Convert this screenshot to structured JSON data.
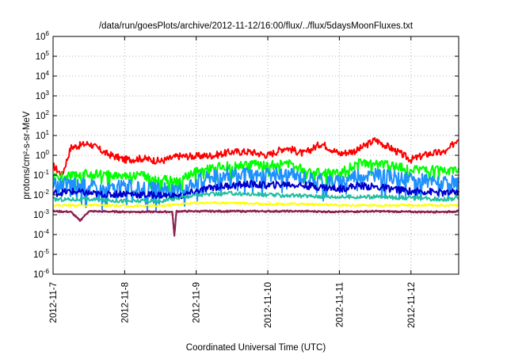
{
  "chart_data": {
    "type": "line",
    "title": "/data/run/goesPlots/archive/2012-11-12/16:00/flux/../flux/5daysMoonFluxes.txt",
    "xlabel": "Coordinated Universal Time (UTC)",
    "ylabel": "protons/cm²-s-sr-MeV",
    "y_scale": "log",
    "ylim": [
      1e-06,
      1000000.0
    ],
    "xlim": [
      "2012-11-07T00:00",
      "2012-11-12T16:00"
    ],
    "grid": true,
    "legend": "none",
    "x_tick_labels": [
      "2012-11-7",
      "2012-11-8",
      "2012-11-9",
      "2012-11-10",
      "2012-11-11",
      "2012-11-12"
    ],
    "y_tick_labels": [
      {
        "base": "10",
        "exp": "-6"
      },
      {
        "base": "10",
        "exp": "-5"
      },
      {
        "base": "10",
        "exp": "-4"
      },
      {
        "base": "10",
        "exp": "-3"
      },
      {
        "base": "10",
        "exp": "-2"
      },
      {
        "base": "10",
        "exp": "-1"
      },
      {
        "base": "10",
        "exp": "0"
      },
      {
        "base": "10",
        "exp": "1"
      },
      {
        "base": "10",
        "exp": "2"
      },
      {
        "base": "10",
        "exp": "3"
      },
      {
        "base": "10",
        "exp": "4"
      },
      {
        "base": "10",
        "exp": "5"
      },
      {
        "base": "10",
        "exp": "6"
      }
    ],
    "series": [
      {
        "color": "#ff0000",
        "x": [
          "2012-11-07T00:00",
          "2012-11-07T03:00",
          "2012-11-07T06:00",
          "2012-11-07T12:00",
          "2012-11-07T18:00",
          "2012-11-08T00:00",
          "2012-11-08T06:00",
          "2012-11-08T12:00",
          "2012-11-08T18:00",
          "2012-11-09T00:00",
          "2012-11-09T06:00",
          "2012-11-09T12:00",
          "2012-11-09T18:00",
          "2012-11-10T00:00",
          "2012-11-10T06:00",
          "2012-11-10T12:00",
          "2012-11-10T18:00",
          "2012-11-11T00:00",
          "2012-11-11T06:00",
          "2012-11-11T12:00",
          "2012-11-11T18:00",
          "2012-11-12T00:00",
          "2012-11-12T06:00",
          "2012-11-12T12:00",
          "2012-11-12T16:00"
        ],
        "values": [
          0.3,
          0.1,
          2.5,
          4,
          1.2,
          0.6,
          0.7,
          0.5,
          0.9,
          0.9,
          1.0,
          1.5,
          1.5,
          1.0,
          2.5,
          1.2,
          4,
          1.2,
          1.8,
          6,
          2,
          0.6,
          1.2,
          1.5,
          8
        ]
      },
      {
        "color": "#00ff00",
        "x": [
          "2012-11-07T00:00",
          "2012-11-07T06:00",
          "2012-11-07T12:00",
          "2012-11-07T18:00",
          "2012-11-08T00:00",
          "2012-11-08T06:00",
          "2012-11-08T12:00",
          "2012-11-08T18:00",
          "2012-11-09T00:00",
          "2012-11-09T06:00",
          "2012-11-09T12:00",
          "2012-11-09T18:00",
          "2012-11-10T00:00",
          "2012-11-10T06:00",
          "2012-11-10T12:00",
          "2012-11-10T18:00",
          "2012-11-11T00:00",
          "2012-11-11T06:00",
          "2012-11-11T12:00",
          "2012-11-11T18:00",
          "2012-11-12T00:00",
          "2012-11-12T06:00",
          "2012-11-12T12:00",
          "2012-11-12T16:00"
        ],
        "values": [
          0.08,
          0.09,
          0.12,
          0.1,
          0.1,
          0.1,
          0.06,
          0.05,
          0.15,
          0.25,
          0.3,
          0.35,
          0.3,
          0.4,
          0.2,
          0.15,
          0.12,
          0.4,
          0.35,
          0.3,
          0.2,
          0.2,
          0.15,
          0.2
        ]
      },
      {
        "color": "#1e90ff",
        "x": [
          "2012-11-07T00:00",
          "2012-11-07T06:00",
          "2012-11-07T12:00",
          "2012-11-07T18:00",
          "2012-11-08T00:00",
          "2012-11-08T06:00",
          "2012-11-08T12:00",
          "2012-11-08T18:00",
          "2012-11-09T00:00",
          "2012-11-09T06:00",
          "2012-11-09T12:00",
          "2012-11-09T18:00",
          "2012-11-10T00:00",
          "2012-11-10T06:00",
          "2012-11-10T12:00",
          "2012-11-10T18:00",
          "2012-11-11T00:00",
          "2012-11-11T06:00",
          "2012-11-11T12:00",
          "2012-11-11T18:00",
          "2012-11-12T00:00",
          "2012-11-12T06:00",
          "2012-11-12T12:00",
          "2012-11-12T16:00"
        ],
        "values": [
          0.03,
          0.04,
          0.03,
          0.02,
          0.03,
          0.02,
          0.02,
          0.015,
          0.06,
          0.1,
          0.12,
          0.1,
          0.1,
          0.12,
          0.08,
          0.06,
          0.05,
          0.12,
          0.1,
          0.08,
          0.06,
          0.05,
          0.04,
          0.05
        ]
      },
      {
        "color": "#0000cd",
        "x": [
          "2012-11-07T00:00",
          "2012-11-07T06:00",
          "2012-11-07T12:00",
          "2012-11-07T18:00",
          "2012-11-08T00:00",
          "2012-11-08T06:00",
          "2012-11-08T12:00",
          "2012-11-08T18:00",
          "2012-11-09T00:00",
          "2012-11-09T06:00",
          "2012-11-09T12:00",
          "2012-11-09T18:00",
          "2012-11-10T00:00",
          "2012-11-10T06:00",
          "2012-11-10T12:00",
          "2012-11-10T18:00",
          "2012-11-11T00:00",
          "2012-11-11T06:00",
          "2012-11-11T12:00",
          "2012-11-11T18:00",
          "2012-11-12T00:00",
          "2012-11-12T06:00",
          "2012-11-12T12:00",
          "2012-11-12T16:00"
        ],
        "values": [
          0.012,
          0.015,
          0.012,
          0.01,
          0.012,
          0.01,
          0.01,
          0.008,
          0.015,
          0.025,
          0.03,
          0.035,
          0.03,
          0.035,
          0.03,
          0.025,
          0.02,
          0.03,
          0.025,
          0.02,
          0.015,
          0.015,
          0.012,
          0.015
        ]
      },
      {
        "color": "#20c0a0",
        "x": [
          "2012-11-07T00:00",
          "2012-11-07T12:00",
          "2012-11-08T00:00",
          "2012-11-08T12:00",
          "2012-11-09T00:00",
          "2012-11-09T12:00",
          "2012-11-10T00:00",
          "2012-11-10T12:00",
          "2012-11-11T00:00",
          "2012-11-11T12:00",
          "2012-11-12T00:00",
          "2012-11-12T12:00",
          "2012-11-12T16:00"
        ],
        "values": [
          0.006,
          0.006,
          0.005,
          0.005,
          0.01,
          0.012,
          0.01,
          0.009,
          0.008,
          0.008,
          0.007,
          0.006,
          0.007
        ]
      },
      {
        "color": "#ffff00",
        "x": [
          "2012-11-07T00:00",
          "2012-11-07T12:00",
          "2012-11-08T00:00",
          "2012-11-08T12:00",
          "2012-11-09T00:00",
          "2012-11-09T12:00",
          "2012-11-10T00:00",
          "2012-11-10T12:00",
          "2012-11-11T00:00",
          "2012-11-11T12:00",
          "2012-11-12T00:00",
          "2012-11-12T12:00",
          "2012-11-12T16:00"
        ],
        "values": [
          0.003,
          0.003,
          0.0028,
          0.0028,
          0.004,
          0.004,
          0.0035,
          0.0035,
          0.003,
          0.003,
          0.003,
          0.003,
          0.003
        ]
      },
      {
        "color": "#8b2252",
        "x": [
          "2012-11-07T00:00",
          "2012-11-07T06:00",
          "2012-11-07T09:00",
          "2012-11-07T12:00",
          "2012-11-08T00:00",
          "2012-11-08T06:00",
          "2012-11-08T12:00",
          "2012-11-08T16:00",
          "2012-11-08T16:40",
          "2012-11-08T17:20",
          "2012-11-09T00:00",
          "2012-11-09T12:00",
          "2012-11-10T00:00",
          "2012-11-10T12:00",
          "2012-11-11T00:00",
          "2012-11-11T12:00",
          "2012-11-12T00:00",
          "2012-11-12T12:00",
          "2012-11-12T16:00"
        ],
        "values": [
          0.0015,
          0.0014,
          0.0005,
          0.0015,
          0.0014,
          0.0014,
          0.0014,
          0.0014,
          8e-05,
          0.0015,
          0.0015,
          0.0015,
          0.0015,
          0.0015,
          0.0014,
          0.0015,
          0.0014,
          0.0014,
          0.0015
        ]
      }
    ]
  }
}
